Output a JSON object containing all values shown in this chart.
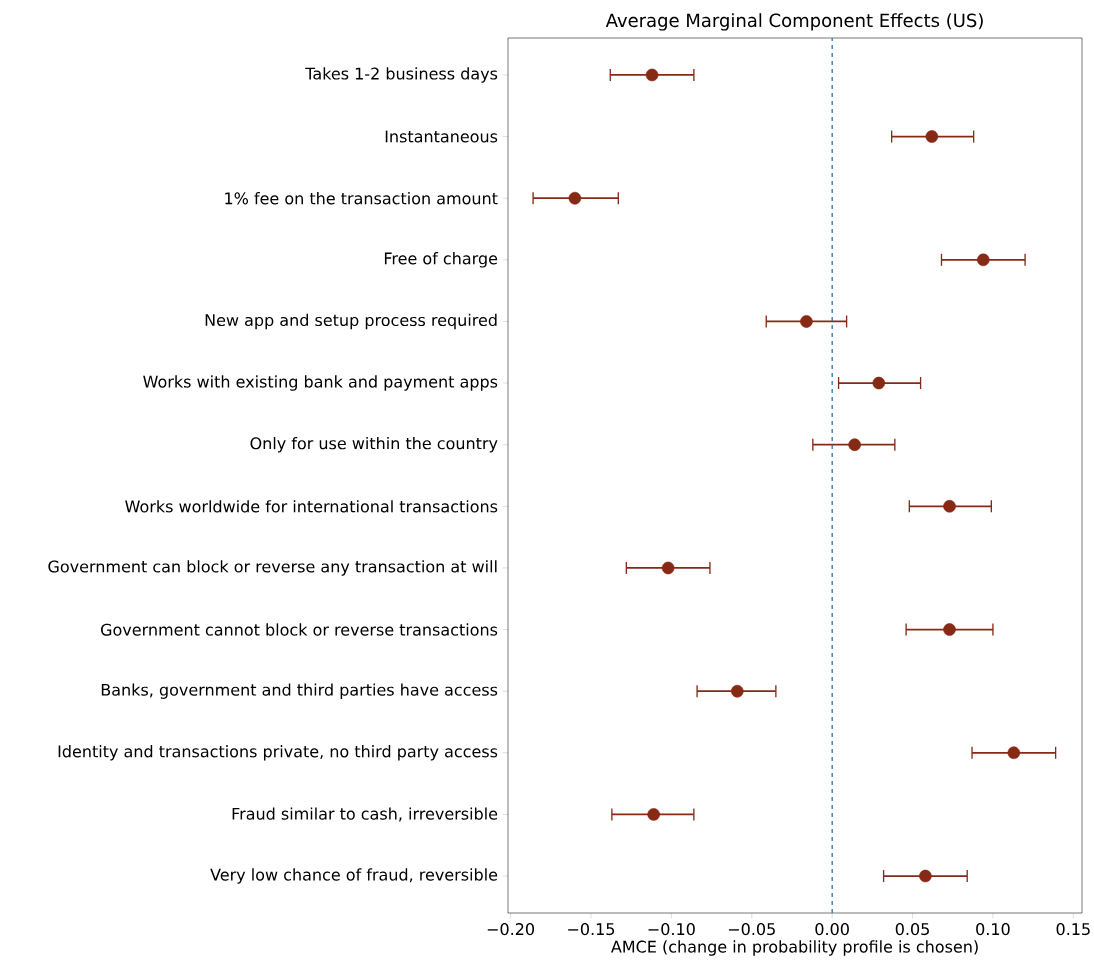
{
  "chart_data": {
    "type": "scatter",
    "orientation": "horizontal",
    "title": "Average Marginal Component Effects (US)",
    "xlabel": "AMCE (change in probability profile is chosen)",
    "categories": [
      "Takes 1-2 business days",
      "Instantaneous",
      "1% fee on the transaction amount",
      "Free of charge",
      "New app and setup process required",
      "Works with existing bank and payment apps",
      "Only for use within the country",
      "Works worldwide for international transactions",
      "Government can block or reverse any transaction at will",
      "Government cannot block or reverse transactions",
      "Banks, government and third parties have access",
      "Identity and transactions private, no third party access",
      "Fraud similar to cash, irreversible",
      "Very low chance of fraud, reversible"
    ],
    "series": [
      {
        "color": "#862a16",
        "values": [
          -0.112,
          0.062,
          -0.16,
          0.094,
          -0.016,
          0.029,
          0.014,
          0.073,
          -0.102,
          0.073,
          -0.059,
          0.113,
          -0.111,
          0.058
        ],
        "errors": [
          [
            -0.138,
            -0.086
          ],
          [
            0.037,
            0.088
          ],
          [
            -0.186,
            -0.133
          ],
          [
            0.068,
            0.12
          ],
          [
            -0.041,
            0.009
          ],
          [
            0.004,
            0.055
          ],
          [
            -0.012,
            0.039
          ],
          [
            0.048,
            0.099
          ],
          [
            -0.128,
            -0.076
          ],
          [
            0.046,
            0.1
          ],
          [
            -0.084,
            -0.035
          ],
          [
            0.087,
            0.139
          ],
          [
            -0.137,
            -0.086
          ],
          [
            0.032,
            0.084
          ]
        ]
      }
    ],
    "marker": "circle",
    "xlim": [
      -0.2016,
      0.1554
    ],
    "xticks": [
      {
        "value": -0.2,
        "label": "−0.20"
      },
      {
        "value": -0.15,
        "label": "−0.15"
      },
      {
        "value": -0.1,
        "label": "−0.10"
      },
      {
        "value": -0.05,
        "label": "−0.05"
      },
      {
        "value": 0,
        "label": "0.00"
      },
      {
        "value": 0.05,
        "label": "0.05"
      },
      {
        "value": 0.1,
        "label": "0.10"
      },
      {
        "value": 0.15,
        "label": "0.15"
      }
    ],
    "ref_lines": [
      {
        "axis": "x",
        "value": 0,
        "color": "#1f77b4",
        "line_style": "dashed"
      }
    ],
    "grid": false
  }
}
